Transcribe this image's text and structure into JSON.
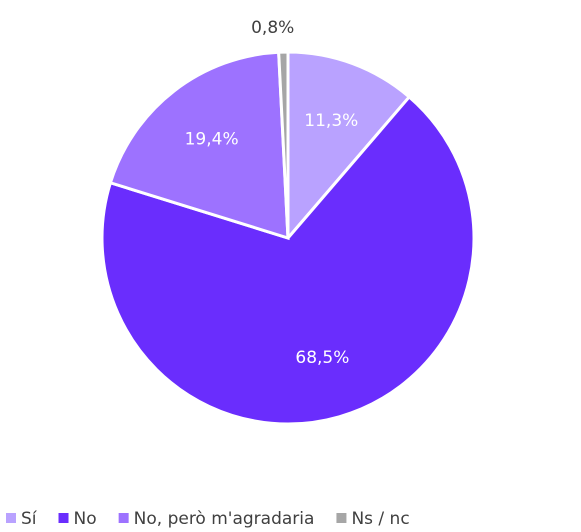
{
  "chart_data": {
    "type": "pie",
    "categories": [
      "Sí",
      "No",
      "No, però m'agradaria",
      "Ns / nc"
    ],
    "values": [
      11.3,
      68.5,
      19.4,
      0.8
    ],
    "value_labels": [
      "11,3%",
      "68,5%",
      "19,4%",
      "0,8%"
    ],
    "colors": [
      "#b9a2ff",
      "#6a2dfd",
      "#9d72ff",
      "#a6a6a6"
    ],
    "legend": "bottom"
  }
}
